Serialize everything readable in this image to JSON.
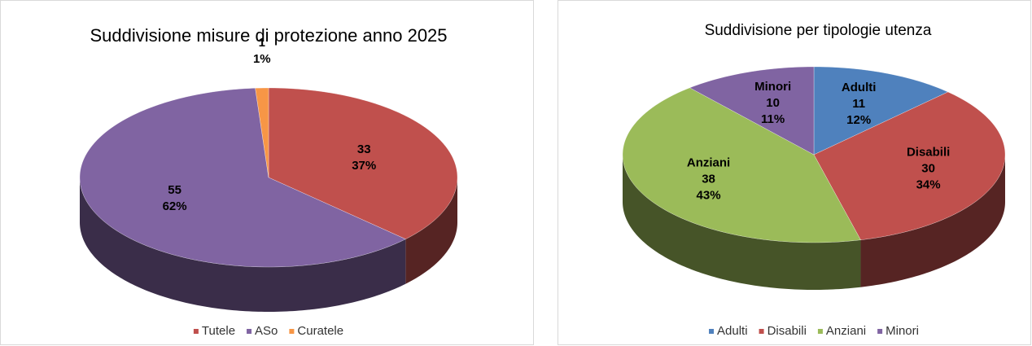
{
  "chart_data": [
    {
      "type": "pie3d",
      "title": "Suddivisione misure di protezione anno 2025",
      "categories": [
        "Tutele",
        "ASo",
        "Curatele"
      ],
      "values": [
        33,
        55,
        1
      ],
      "percentages": [
        37,
        62,
        1
      ],
      "percentage_labels": [
        "37%",
        "62%",
        "1%"
      ],
      "colors": [
        "#c0504d",
        "#8064a2",
        "#f79646"
      ],
      "legend": "bottom"
    },
    {
      "type": "pie3d",
      "title": "Suddivisione per tipologie utenza",
      "categories": [
        "Adulti",
        "Disabili",
        "Anziani",
        "Minori"
      ],
      "values": [
        11,
        30,
        38,
        10
      ],
      "percentages": [
        12,
        34,
        43,
        11
      ],
      "percentage_labels": [
        "12%",
        "34%",
        "43%",
        "11%"
      ],
      "colors": [
        "#4f81bd",
        "#c0504d",
        "#9bbb59",
        "#8064a2"
      ],
      "legend": "bottom"
    }
  ]
}
